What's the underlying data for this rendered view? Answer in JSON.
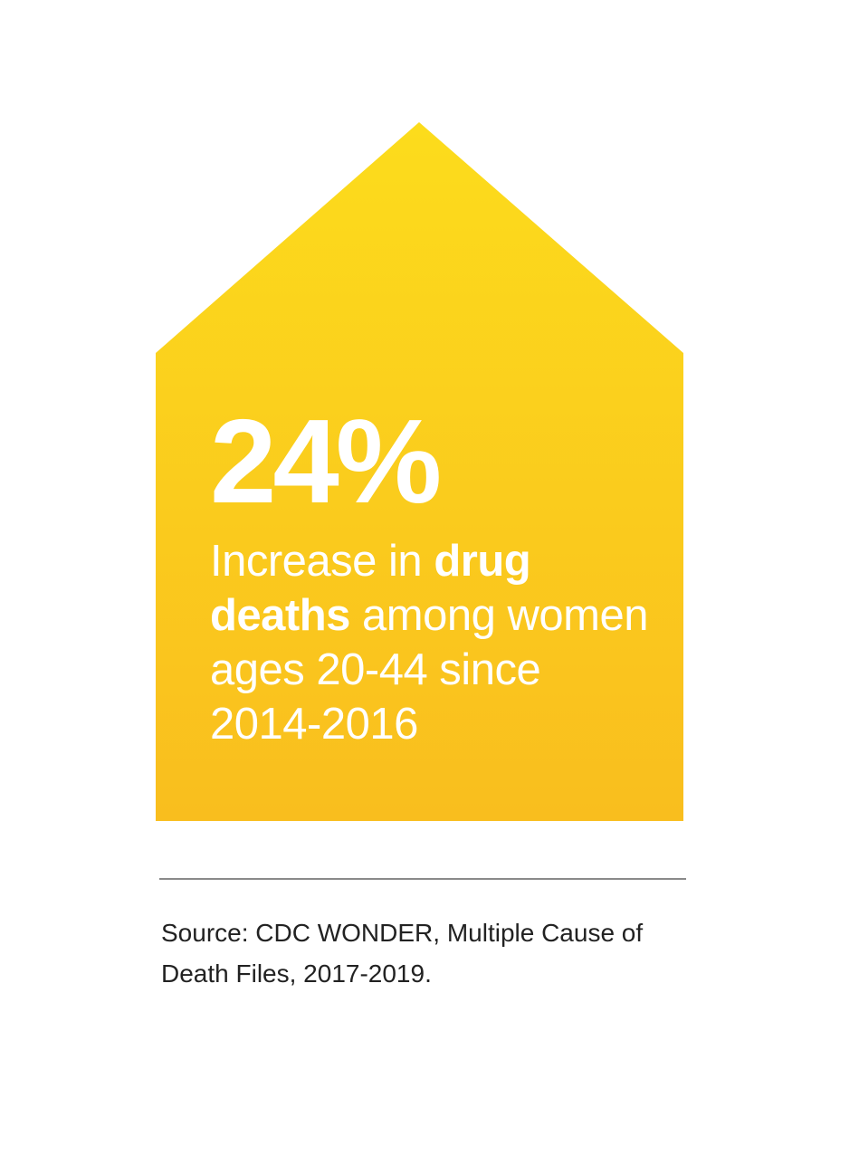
{
  "colors": {
    "house_top": "#FCDC1C",
    "house_bottom": "#F9BE1E",
    "stat_text": "#FFFFFF",
    "divider": "#8A8A8A",
    "source_text": "#222222"
  },
  "stat": {
    "value": "24%",
    "caption_part1": "Increase in ",
    "caption_bold1": "drug",
    "caption_part2": " ",
    "caption_bold2": "deaths",
    "caption_part3": " among women ages 20-44 since 2014-2016"
  },
  "source": {
    "text": "Source: CDC WONDER, Multiple Cause of Death Files, 2017-2019."
  }
}
